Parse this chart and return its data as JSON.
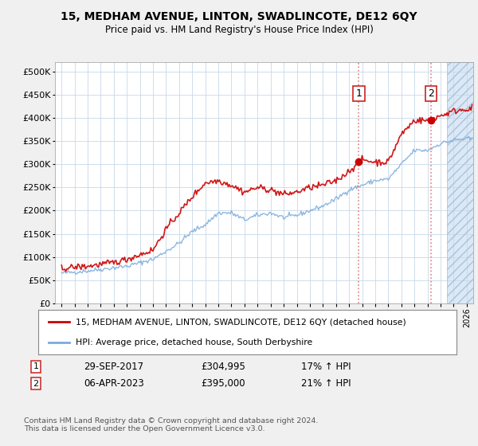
{
  "title": "15, MEDHAM AVENUE, LINTON, SWADLINCOTE, DE12 6QY",
  "subtitle": "Price paid vs. HM Land Registry's House Price Index (HPI)",
  "ytick_values": [
    0,
    50000,
    100000,
    150000,
    200000,
    250000,
    300000,
    350000,
    400000,
    450000,
    500000
  ],
  "xlim_start": 1994.5,
  "xlim_end": 2026.5,
  "ylim": [
    0,
    520000
  ],
  "transaction1": {
    "date": 2017.75,
    "price": 304995,
    "label": "1",
    "text": "29-SEP-2017",
    "amount": "£304,995",
    "hpi_note": "17% ↑ HPI"
  },
  "transaction2": {
    "date": 2023.27,
    "price": 395000,
    "label": "2",
    "text": "06-APR-2023",
    "amount": "£395,000",
    "hpi_note": "21% ↑ HPI"
  },
  "legend_property": "15, MEDHAM AVENUE, LINTON, SWADLINCOTE, DE12 6QY (detached house)",
  "legend_hpi": "HPI: Average price, detached house, South Derbyshire",
  "footer": "Contains HM Land Registry data © Crown copyright and database right 2024.\nThis data is licensed under the Open Government Licence v3.0.",
  "property_line_color": "#cc0000",
  "hpi_line_color": "#7aabdb",
  "dashed_line_color": "#e08080",
  "fig_bg_color": "#f0f0f0",
  "plot_bg_color": "#ffffff",
  "grid_color": "#c8d8e8",
  "hatch_region_start": 2024.5,
  "hatch_fill_color": "#dce8f5",
  "hpi_keypoints_years": [
    1995,
    1997,
    2000,
    2002,
    2004,
    2005,
    2006,
    2007,
    2008,
    2009,
    2010,
    2011,
    2012,
    2013,
    2014,
    2015,
    2016,
    2017,
    2018,
    2019,
    2020,
    2021,
    2022,
    2023,
    2024,
    2025,
    2026
  ],
  "hpi_keypoints_vals": [
    65000,
    70000,
    80000,
    95000,
    130000,
    155000,
    170000,
    195000,
    195000,
    180000,
    190000,
    195000,
    185000,
    190000,
    200000,
    210000,
    225000,
    245000,
    255000,
    265000,
    268000,
    300000,
    330000,
    330000,
    345000,
    352000,
    355000
  ],
  "prop_keypoints_years": [
    1995,
    1996,
    1997,
    1999,
    2000,
    2001,
    2002,
    2003,
    2004,
    2005,
    2006,
    2007,
    2008,
    2009,
    2010,
    2011,
    2012,
    2013,
    2014,
    2015,
    2016,
    2017,
    2017.75,
    2018,
    2019,
    2020,
    2021,
    2022,
    2023,
    2023.27,
    2023.5,
    2024,
    2025,
    2026
  ],
  "prop_keypoints_vals": [
    75000,
    78000,
    80000,
    88000,
    95000,
    105000,
    115000,
    160000,
    195000,
    230000,
    260000,
    265000,
    255000,
    240000,
    250000,
    245000,
    235000,
    240000,
    250000,
    255000,
    265000,
    285000,
    304995,
    310000,
    305000,
    305000,
    365000,
    395000,
    395000,
    395000,
    400000,
    405000,
    415000,
    420000
  ],
  "noise_seed": 42,
  "prop_noise_std": 3500,
  "hpi_noise_std": 2500
}
